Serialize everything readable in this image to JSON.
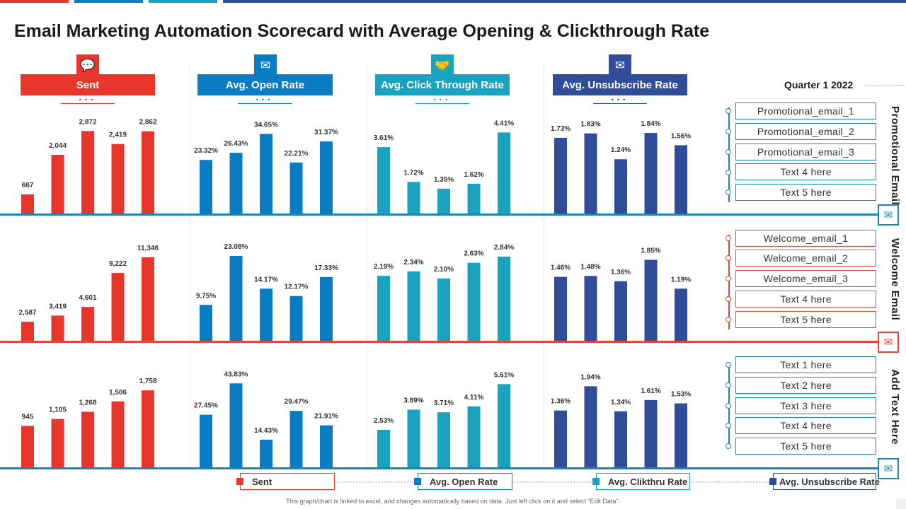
{
  "title": "Email Marketing Automation Scorecard with Average Opening & Clickthrough Rate",
  "colors": {
    "red": "#e8362d",
    "blue": "#0a7cc4",
    "teal": "#1aa3bf",
    "navy": "#2f4d99"
  },
  "headers": [
    {
      "label": "Sent",
      "icon": "chat-icon",
      "glyph": "💬",
      "color": "#e8362d"
    },
    {
      "label": "Avg. Open Rate",
      "icon": "envelope-open-icon",
      "glyph": "✉",
      "color": "#0a7cc4"
    },
    {
      "label": "Avg. Click Through Rate",
      "icon": "handshake-icon",
      "glyph": "🤝",
      "color": "#1aa3bf"
    },
    {
      "label": "Avg. Unsubscribe Rate",
      "icon": "mail-remove-icon",
      "glyph": "✉",
      "color": "#2f4d99"
    }
  ],
  "quarter": "Quarter 1 2022",
  "rows": [
    {
      "title": "Promotional Email",
      "icon": "email-gear-icon",
      "glyph": "✉",
      "color": "#1a86b6",
      "items": [
        "Promotional_email_1",
        "Promotional_email_2",
        "Promotional_email_3",
        "Text 4 here",
        "Text 5 here"
      ]
    },
    {
      "title": "Welcome Email",
      "icon": "email-heart-icon",
      "glyph": "✉",
      "color": "#e0473d",
      "items": [
        "Welcome_email_1",
        "Welcome_email_2",
        "Welcome_email_3",
        "Text 4 here",
        "Text 5 here"
      ]
    },
    {
      "title": "Add Text Here",
      "icon": "email-check-icon",
      "glyph": "✉",
      "color": "#1a86b6",
      "items": [
        "Text 1 here",
        "Text 2 here",
        "Text 3 here",
        "Text 4 here",
        "Text 5 here"
      ]
    }
  ],
  "chart_data": [
    {
      "type": "bar",
      "row": "Promotional Email",
      "metric": "Sent",
      "values": [
        667,
        2044,
        2872,
        2419,
        2862
      ],
      "labels": [
        "667",
        "2,044",
        "2,872",
        "2,419",
        "2,862"
      ],
      "ylim": [
        0,
        3200
      ]
    },
    {
      "type": "bar",
      "row": "Promotional Email",
      "metric": "Avg. Open Rate",
      "values": [
        23.32,
        26.43,
        34.65,
        22.21,
        31.37
      ],
      "labels": [
        "23.32%",
        "26.43%",
        "34.65%",
        "22.21%",
        "31.37%"
      ],
      "ylim": [
        0,
        40
      ]
    },
    {
      "type": "bar",
      "row": "Promotional Email",
      "metric": "Avg. Click Through Rate",
      "values": [
        3.61,
        1.72,
        1.35,
        1.62,
        4.41
      ],
      "labels": [
        "3.61%",
        "1.72%",
        "1.35%",
        "1.62%",
        "4.41%"
      ],
      "ylim": [
        0,
        5
      ]
    },
    {
      "type": "bar",
      "row": "Promotional Email",
      "metric": "Avg. Unsubscribe Rate",
      "values": [
        1.73,
        1.83,
        1.24,
        1.84,
        1.56
      ],
      "labels": [
        "1.73%",
        "1.83%",
        "1.24%",
        "1.84%",
        "1.56%"
      ],
      "ylim": [
        0,
        2.1
      ]
    },
    {
      "type": "bar",
      "row": "Welcome Email",
      "metric": "Sent",
      "values": [
        2587,
        3419,
        4601,
        9222,
        11346
      ],
      "labels": [
        "2,587",
        "3,419",
        "4,601",
        "9,222",
        "11,346"
      ],
      "ylim": [
        0,
        12500
      ]
    },
    {
      "type": "bar",
      "row": "Welcome Email",
      "metric": "Avg. Open Rate",
      "values": [
        9.75,
        23.08,
        14.17,
        12.17,
        17.33
      ],
      "labels": [
        "9.75%",
        "23.08%",
        "14.17%",
        "12.17%",
        "17.33%"
      ],
      "ylim": [
        0,
        25
      ]
    },
    {
      "type": "bar",
      "row": "Welcome Email",
      "metric": "Avg. Click Through Rate",
      "values": [
        2.19,
        2.34,
        2.1,
        2.63,
        2.84
      ],
      "labels": [
        "2.19%",
        "2.34%",
        "2.10%",
        "2.63%",
        "2.84%"
      ],
      "ylim": [
        0,
        3.1
      ]
    },
    {
      "type": "bar",
      "row": "Welcome Email",
      "metric": "Avg. Unsubscribe Rate",
      "values": [
        1.46,
        1.48,
        1.36,
        1.85,
        1.19
      ],
      "labels": [
        "1.46%",
        "1.48%",
        "1.36%",
        "1.85%",
        "1.19%"
      ],
      "ylim": [
        0,
        2.1
      ]
    },
    {
      "type": "bar",
      "row": "Add Text Here",
      "metric": "Sent",
      "values": [
        945,
        1105,
        1268,
        1506,
        1758
      ],
      "labels": [
        "945",
        "1,105",
        "1,268",
        "1,506",
        "1,758"
      ],
      "ylim": [
        0,
        2100
      ]
    },
    {
      "type": "bar",
      "row": "Add Text Here",
      "metric": "Avg. Open Rate",
      "values": [
        27.45,
        43.83,
        14.43,
        29.47,
        21.91
      ],
      "labels": [
        "27.45%",
        "43.83%",
        "14.43%",
        "29.47%",
        "21.91%"
      ],
      "ylim": [
        0,
        48
      ]
    },
    {
      "type": "bar",
      "row": "Add Text Here",
      "metric": "Avg. Click Through Rate",
      "values": [
        2.53,
        3.89,
        3.71,
        4.11,
        5.61
      ],
      "labels": [
        "2.53%",
        "3.89%",
        "3.71%",
        "4.11%",
        "5.61%"
      ],
      "ylim": [
        0,
        6.2
      ]
    },
    {
      "type": "bar",
      "row": "Add Text Here",
      "metric": "Avg. Unsubscribe Rate",
      "values": [
        1.36,
        1.94,
        1.34,
        1.61,
        1.53
      ],
      "labels": [
        "1.36%",
        "1.94%",
        "1.34%",
        "1.61%",
        "1.53%"
      ],
      "ylim": [
        0,
        2.2
      ]
    }
  ],
  "legend": [
    {
      "label": "Sent",
      "color": "#e8362d"
    },
    {
      "label": "Avg. Open Rate",
      "color": "#0a7cc4"
    },
    {
      "label": "Avg. Clikthru Rate",
      "color": "#1aa3bf"
    },
    {
      "label": "Avg. Unsubscribe Rate",
      "color": "#2f4d99"
    }
  ],
  "footnote": "This graph/chart is linked to excel, and changes automatically based on data. Just left click on it and select “Edit Data”."
}
